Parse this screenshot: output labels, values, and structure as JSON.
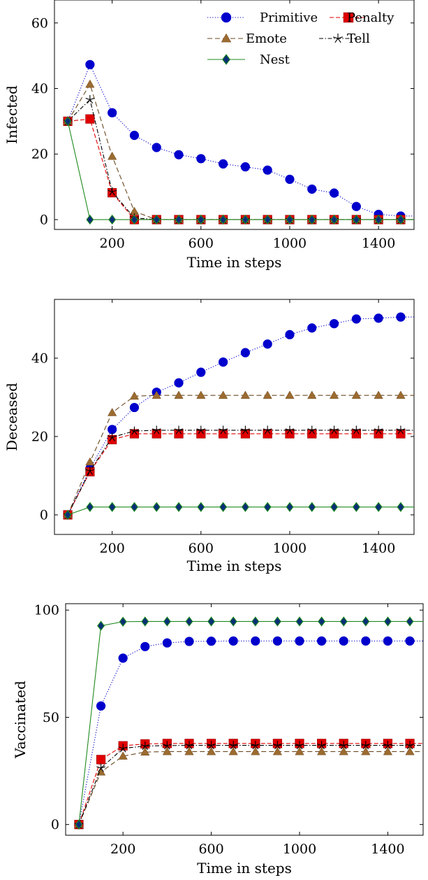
{
  "chart_data": [
    {
      "type": "line",
      "xlabel": "Time in steps",
      "ylabel": "Infected",
      "xlim": [
        -60,
        1560
      ],
      "ylim": [
        -3,
        67
      ],
      "xticks": [
        200,
        600,
        1000,
        1400
      ],
      "yticks": [
        0,
        20,
        40,
        60
      ],
      "xtick_labels": [
        "200",
        "600",
        "1000",
        "1400"
      ],
      "ytick_labels": [
        "0",
        "20",
        "40",
        "60"
      ],
      "grid": false,
      "legend": "top-right",
      "x": [
        0,
        100,
        200,
        300,
        400,
        500,
        600,
        700,
        800,
        900,
        1000,
        1100,
        1200,
        1300,
        1400,
        1500
      ],
      "series": [
        {
          "name": "Primitive",
          "display_name": "Primitive",
          "color": "#0000cc",
          "line_color": "#0000cc",
          "marker": "circle",
          "dash": "dotted",
          "values": [
            30,
            47.3,
            32.6,
            25.7,
            22,
            19.8,
            18.6,
            17,
            16.1,
            15.1,
            12.3,
            9.3,
            8.1,
            4,
            1.6,
            1.1
          ]
        },
        {
          "name": "Penalty",
          "display_name": "Penalty",
          "color": "#e00000",
          "line_color": "#e00000",
          "marker": "square",
          "dash": "dashed",
          "values": [
            30,
            30.7,
            8.2,
            0,
            0,
            0,
            0,
            0,
            0,
            0,
            0,
            0,
            0,
            0,
            0,
            0
          ]
        },
        {
          "name": "Emote",
          "display_name": "Emote",
          "color": "#9c6b30",
          "line_color": "#6b4a22",
          "marker": "triangle",
          "dash": "longdash",
          "values": [
            30,
            41.3,
            19.3,
            2.5,
            0,
            0,
            0,
            0,
            0,
            0,
            0,
            0,
            0,
            0,
            0,
            0
          ]
        },
        {
          "name": "Tell",
          "display_name": "Tell",
          "color": "#000000",
          "line_color": "#000000",
          "marker": "star",
          "dash": "dashdot",
          "values": [
            30,
            36.6,
            8.5,
            0.5,
            0,
            0,
            0,
            0,
            0,
            0,
            0,
            0,
            0,
            0,
            0,
            0
          ]
        },
        {
          "name": "Nest",
          "display_name": "Nest",
          "color": "#1f8a1f",
          "line_color": "#1f8a1f",
          "marker": "diamond",
          "dash": "solid",
          "values": [
            30,
            0,
            0,
            0,
            0,
            0,
            0,
            0,
            0,
            0,
            0,
            0,
            0,
            0,
            0,
            0
          ]
        }
      ]
    },
    {
      "type": "line",
      "xlabel": "Time in steps",
      "ylabel": "Deceased",
      "xlim": [
        -60,
        1560
      ],
      "ylim": [
        -5,
        55
      ],
      "xticks": [
        200,
        600,
        1000,
        1400
      ],
      "yticks": [
        0,
        20,
        40
      ],
      "xtick_labels": [
        "200",
        "600",
        "1000",
        "1400"
      ],
      "ytick_labels": [
        "0",
        "20",
        "40"
      ],
      "grid": false,
      "legend": "",
      "x": [
        0,
        100,
        200,
        300,
        400,
        500,
        600,
        700,
        800,
        900,
        1000,
        1100,
        1200,
        1300,
        1400,
        1500
      ],
      "series": [
        {
          "name": "Primitive",
          "color": "#0000cc",
          "line_color": "#0000cc",
          "marker": "circle",
          "dash": "dotted",
          "values": [
            0,
            11.8,
            21.8,
            27.4,
            31.3,
            33.7,
            36.4,
            39,
            41.4,
            43.6,
            46,
            47.7,
            48.8,
            50,
            50.2,
            50.5
          ]
        },
        {
          "name": "Penalty",
          "color": "#e00000",
          "line_color": "#e00000",
          "marker": "square",
          "dash": "dashed",
          "values": [
            0,
            11,
            19.2,
            20.7,
            20.7,
            20.7,
            20.7,
            20.7,
            20.7,
            20.7,
            20.7,
            20.7,
            20.7,
            20.7,
            20.7,
            20.7
          ]
        },
        {
          "name": "Emote",
          "color": "#9c6b30",
          "line_color": "#6b4a22",
          "marker": "triangle",
          "dash": "longdash",
          "values": [
            0,
            13.5,
            26.1,
            30.3,
            30.5,
            30.5,
            30.5,
            30.5,
            30.5,
            30.5,
            30.5,
            30.5,
            30.5,
            30.5,
            30.5,
            30.5
          ]
        },
        {
          "name": "Tell",
          "color": "#000000",
          "line_color": "#000000",
          "marker": "star",
          "dash": "dashdot",
          "values": [
            0,
            11.2,
            19.8,
            21.4,
            21.6,
            21.6,
            21.6,
            21.6,
            21.6,
            21.6,
            21.6,
            21.6,
            21.6,
            21.6,
            21.6,
            21.6
          ]
        },
        {
          "name": "Nest",
          "color": "#1f8a1f",
          "line_color": "#1f8a1f",
          "marker": "diamond",
          "dash": "solid",
          "values": [
            0,
            2,
            2,
            2,
            2,
            2,
            2,
            2,
            2,
            2,
            2,
            2,
            2,
            2,
            2,
            2
          ]
        }
      ]
    },
    {
      "type": "line",
      "xlabel": "Time in steps",
      "ylabel": "Vaccinated",
      "xlim": [
        -60,
        1560
      ],
      "ylim": [
        -5,
        103
      ],
      "xticks": [
        200,
        600,
        1000,
        1400
      ],
      "yticks": [
        0,
        50,
        100
      ],
      "xtick_labels": [
        "200",
        "600",
        "1000",
        "1400"
      ],
      "ytick_labels": [
        "0",
        "50",
        "100"
      ],
      "grid": false,
      "legend": "",
      "x": [
        0,
        100,
        200,
        300,
        400,
        500,
        600,
        700,
        800,
        900,
        1000,
        1100,
        1200,
        1300,
        1400,
        1500
      ],
      "series": [
        {
          "name": "Primitive",
          "color": "#0000cc",
          "line_color": "#0000cc",
          "marker": "circle",
          "dash": "dotted",
          "values": [
            0,
            55.3,
            77.6,
            83,
            84.7,
            85.4,
            85.5,
            85.6,
            85.6,
            85.6,
            85.6,
            85.6,
            85.6,
            85.6,
            85.6,
            85.6
          ]
        },
        {
          "name": "Penalty",
          "color": "#e00000",
          "line_color": "#e00000",
          "marker": "square",
          "dash": "dashed",
          "values": [
            0,
            30.3,
            36.7,
            37.6,
            37.8,
            37.8,
            37.8,
            37.8,
            37.8,
            37.8,
            37.8,
            37.8,
            37.8,
            37.8,
            37.8,
            37.8
          ]
        },
        {
          "name": "Emote",
          "color": "#9c6b30",
          "line_color": "#6b4a22",
          "marker": "triangle",
          "dash": "longdash",
          "values": [
            0,
            24.5,
            31.9,
            33.8,
            34,
            34,
            34,
            34,
            34,
            34,
            34,
            34,
            34,
            34,
            34,
            34
          ]
        },
        {
          "name": "Tell",
          "color": "#000000",
          "line_color": "#000000",
          "marker": "star",
          "dash": "dashdot",
          "values": [
            0,
            26.3,
            35.5,
            36.6,
            36.8,
            36.9,
            36.9,
            36.9,
            36.9,
            36.9,
            36.9,
            36.9,
            36.9,
            36.9,
            36.9,
            36.9
          ]
        },
        {
          "name": "Nest",
          "color": "#1f8a1f",
          "line_color": "#1f8a1f",
          "marker": "diamond",
          "dash": "solid",
          "values": [
            0,
            92.7,
            94.6,
            94.7,
            94.7,
            94.7,
            94.7,
            94.7,
            94.7,
            94.7,
            94.7,
            94.7,
            94.7,
            94.7,
            94.7,
            94.7
          ]
        }
      ]
    }
  ]
}
